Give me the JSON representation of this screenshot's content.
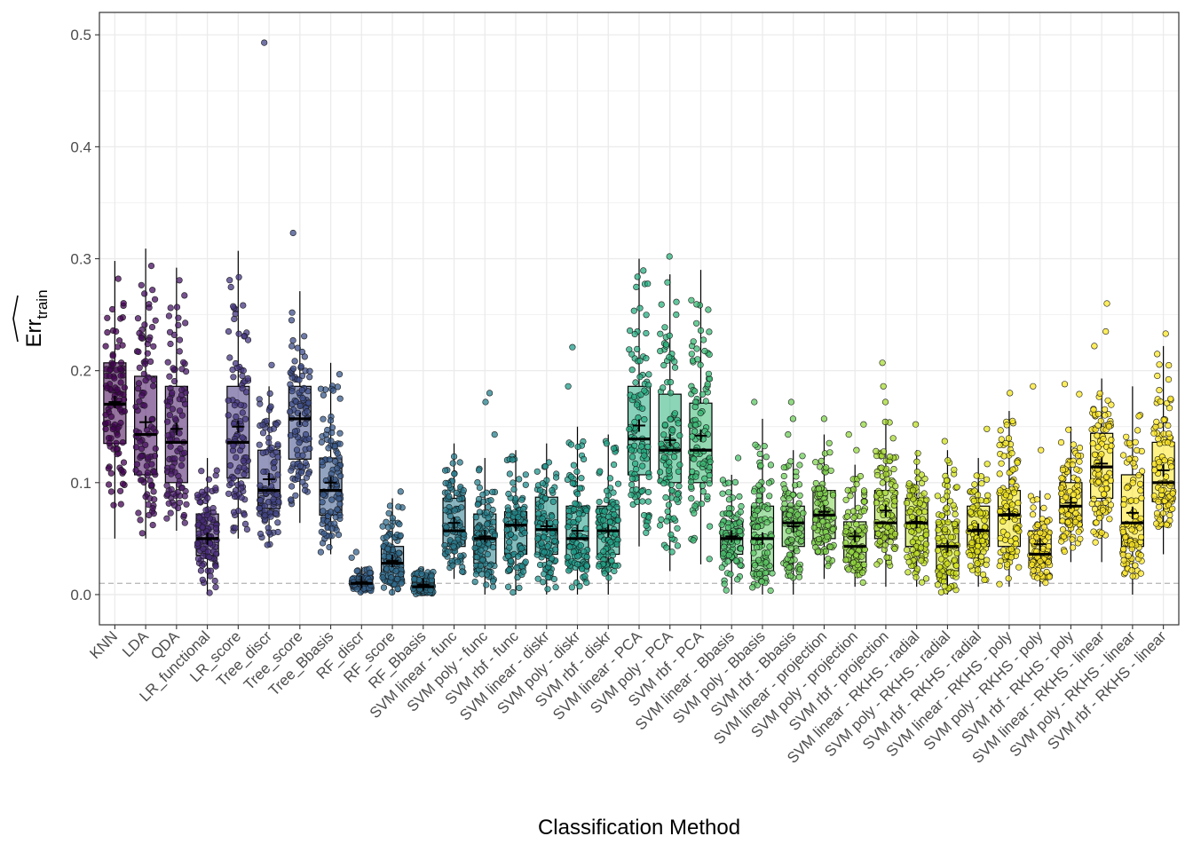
{
  "chart_data": {
    "type": "boxplot",
    "xlabel": "Classification Method",
    "ylabel": "Err",
    "ylabel_subscript": "train",
    "ylim": [
      -0.027,
      0.52
    ],
    "yticks": [
      0.0,
      0.1,
      0.2,
      0.3,
      0.4,
      0.5
    ],
    "ytick_labels": [
      "0.0",
      "0.1",
      "0.2",
      "0.3",
      "0.4",
      "0.5"
    ],
    "reference_line": 0.01,
    "grid": true,
    "palette": "viridis",
    "categories": [
      "KNN",
      "LDA",
      "QDA",
      "LR_functional",
      "LR_score",
      "Tree_discr",
      "Tree_score",
      "Tree_Bbasis",
      "RF_discr",
      "RF_score",
      "RF_Bbasis",
      "SVM linear - func",
      "SVM poly - func",
      "SVM rbf - func",
      "SVM linear - diskr",
      "SVM poly - diskr",
      "SVM rbf - diskr",
      "SVM linear - PCA",
      "SVM poly - PCA",
      "SVM rbf - PCA",
      "SVM linear - Bbasis",
      "SVM poly - Bbasis",
      "SVM rbf - Bbasis",
      "SVM linear - projection",
      "SVM poly - projection",
      "SVM rbf - projection",
      "SVM linear - RKHS - radial",
      "SVM poly - RKHS - radial",
      "SVM rbf - RKHS - radial",
      "SVM linear - RKHS - poly",
      "SVM poly - RKHS - poly",
      "SVM rbf - RKHS - poly",
      "SVM linear - RKHS - linear",
      "SVM poly - RKHS - linear",
      "SVM rbf - RKHS - linear"
    ],
    "colors": [
      "#440154",
      "#470D60",
      "#48186A",
      "#472A7A",
      "#453581",
      "#414487",
      "#3D4D8A",
      "#38598C",
      "#34618D",
      "#2F6B8E",
      "#2C728E",
      "#297B8E",
      "#26828E",
      "#228B8D",
      "#1F938B",
      "#1E9C89",
      "#20A386",
      "#25AC82",
      "#2EB37C",
      "#3BBB75",
      "#4AC16D",
      "#5CC863",
      "#6DCD59",
      "#7FD34E",
      "#94D840",
      "#A8DB34",
      "#BDDF26",
      "#D0E11C",
      "#E4E419",
      "#F2E51D",
      "#FDE725",
      "#FDE725",
      "#FDE725",
      "#FDE725",
      "#FDE725"
    ],
    "boxes": [
      {
        "q1": 0.135,
        "median": 0.17,
        "q3": 0.207,
        "mean": 0.172,
        "wlo": 0.05,
        "whi": 0.298,
        "outliers": []
      },
      {
        "q1": 0.107,
        "median": 0.143,
        "q3": 0.195,
        "mean": 0.154,
        "wlo": 0.05,
        "whi": 0.309,
        "outliers": []
      },
      {
        "q1": 0.1,
        "median": 0.136,
        "q3": 0.186,
        "mean": 0.148,
        "wlo": 0.057,
        "whi": 0.292,
        "outliers": []
      },
      {
        "q1": 0.035,
        "median": 0.05,
        "q3": 0.072,
        "mean": 0.05,
        "wlo": 0.0,
        "whi": 0.122,
        "outliers": []
      },
      {
        "q1": 0.104,
        "median": 0.136,
        "q3": 0.186,
        "mean": 0.15,
        "wlo": 0.05,
        "whi": 0.307,
        "outliers": []
      },
      {
        "q1": 0.077,
        "median": 0.093,
        "q3": 0.129,
        "mean": 0.103,
        "wlo": 0.043,
        "whi": 0.186,
        "outliers": [
          0.205,
          0.493
        ]
      },
      {
        "q1": 0.121,
        "median": 0.157,
        "q3": 0.186,
        "mean": 0.157,
        "wlo": 0.064,
        "whi": 0.271,
        "outliers": [
          0.323
        ]
      },
      {
        "q1": 0.071,
        "median": 0.093,
        "q3": 0.122,
        "mean": 0.1,
        "wlo": 0.036,
        "whi": 0.207,
        "outliers": []
      },
      {
        "q1": 0.007,
        "median": 0.01,
        "q3": 0.014,
        "mean": 0.011,
        "wlo": 0.0,
        "whi": 0.025,
        "outliers": [
          0.033,
          0.038
        ]
      },
      {
        "q1": 0.014,
        "median": 0.028,
        "q3": 0.043,
        "mean": 0.03,
        "wlo": 0.0,
        "whi": 0.086,
        "outliers": [
          0.092
        ]
      },
      {
        "q1": 0.004,
        "median": 0.007,
        "q3": 0.014,
        "mean": 0.009,
        "wlo": 0.0,
        "whi": 0.025,
        "outliers": []
      },
      {
        "q1": 0.043,
        "median": 0.057,
        "q3": 0.086,
        "mean": 0.064,
        "wlo": 0.014,
        "whi": 0.135,
        "outliers": []
      },
      {
        "q1": 0.028,
        "median": 0.05,
        "q3": 0.072,
        "mean": 0.052,
        "wlo": 0.0,
        "whi": 0.122,
        "outliers": [
          0.143,
          0.172,
          0.18
        ]
      },
      {
        "q1": 0.036,
        "median": 0.062,
        "q3": 0.074,
        "mean": 0.062,
        "wlo": 0.0,
        "whi": 0.129,
        "outliers": []
      },
      {
        "q1": 0.036,
        "median": 0.058,
        "q3": 0.087,
        "mean": 0.061,
        "wlo": 0.0,
        "whi": 0.135,
        "outliers": []
      },
      {
        "q1": 0.029,
        "median": 0.05,
        "q3": 0.079,
        "mean": 0.057,
        "wlo": 0.0,
        "whi": 0.15,
        "outliers": [
          0.186,
          0.221
        ]
      },
      {
        "q1": 0.036,
        "median": 0.057,
        "q3": 0.079,
        "mean": 0.057,
        "wlo": 0.0,
        "whi": 0.143,
        "outliers": []
      },
      {
        "q1": 0.107,
        "median": 0.139,
        "q3": 0.186,
        "mean": 0.151,
        "wlo": 0.043,
        "whi": 0.3,
        "outliers": []
      },
      {
        "q1": 0.1,
        "median": 0.129,
        "q3": 0.179,
        "mean": 0.138,
        "wlo": 0.021,
        "whi": 0.286,
        "outliers": [
          0.302
        ]
      },
      {
        "q1": 0.1,
        "median": 0.129,
        "q3": 0.171,
        "mean": 0.142,
        "wlo": 0.027,
        "whi": 0.29,
        "outliers": []
      },
      {
        "q1": 0.036,
        "median": 0.05,
        "q3": 0.065,
        "mean": 0.052,
        "wlo": 0.0,
        "whi": 0.107,
        "outliers": [
          0.122
        ]
      },
      {
        "q1": 0.021,
        "median": 0.05,
        "q3": 0.079,
        "mean": 0.05,
        "wlo": 0.0,
        "whi": 0.157,
        "outliers": [
          0.172
        ]
      },
      {
        "q1": 0.043,
        "median": 0.064,
        "q3": 0.079,
        "mean": 0.061,
        "wlo": 0.0,
        "whi": 0.129,
        "outliers": [
          0.143,
          0.157,
          0.172
        ]
      },
      {
        "q1": 0.05,
        "median": 0.071,
        "q3": 0.093,
        "mean": 0.074,
        "wlo": 0.014,
        "whi": 0.143,
        "outliers": [
          0.157
        ]
      },
      {
        "q1": 0.029,
        "median": 0.043,
        "q3": 0.065,
        "mean": 0.052,
        "wlo": 0.007,
        "whi": 0.116,
        "outliers": [
          0.129,
          0.143,
          0.152
        ]
      },
      {
        "q1": 0.05,
        "median": 0.064,
        "q3": 0.093,
        "mean": 0.075,
        "wlo": 0.007,
        "whi": 0.157,
        "outliers": [
          0.172,
          0.186,
          0.207
        ]
      },
      {
        "q1": 0.043,
        "median": 0.064,
        "q3": 0.086,
        "mean": 0.065,
        "wlo": 0.007,
        "whi": 0.129,
        "outliers": [
          0.152
        ]
      },
      {
        "q1": 0.021,
        "median": 0.043,
        "q3": 0.065,
        "mean": 0.043,
        "wlo": 0.0,
        "whi": 0.129,
        "outliers": [
          0.137
        ]
      },
      {
        "q1": 0.043,
        "median": 0.057,
        "q3": 0.079,
        "mean": 0.058,
        "wlo": 0.007,
        "whi": 0.122,
        "outliers": [
          0.148
        ]
      },
      {
        "q1": 0.043,
        "median": 0.071,
        "q3": 0.093,
        "mean": 0.072,
        "wlo": 0.007,
        "whi": 0.164,
        "outliers": [
          0.18
        ]
      },
      {
        "q1": 0.029,
        "median": 0.036,
        "q3": 0.057,
        "mean": 0.045,
        "wlo": 0.007,
        "whi": 0.093,
        "outliers": [
          0.129,
          0.186
        ]
      },
      {
        "q1": 0.064,
        "median": 0.079,
        "q3": 0.1,
        "mean": 0.082,
        "wlo": 0.029,
        "whi": 0.15,
        "outliers": [
          0.179,
          0.188
        ]
      },
      {
        "q1": 0.086,
        "median": 0.114,
        "q3": 0.144,
        "mean": 0.117,
        "wlo": 0.029,
        "whi": 0.193,
        "outliers": [
          0.222,
          0.235,
          0.26
        ]
      },
      {
        "q1": 0.043,
        "median": 0.064,
        "q3": 0.107,
        "mean": 0.073,
        "wlo": 0.0,
        "whi": 0.186,
        "outliers": []
      },
      {
        "q1": 0.083,
        "median": 0.1,
        "q3": 0.136,
        "mean": 0.111,
        "wlo": 0.036,
        "whi": 0.222,
        "outliers": [
          0.233
        ]
      }
    ]
  }
}
